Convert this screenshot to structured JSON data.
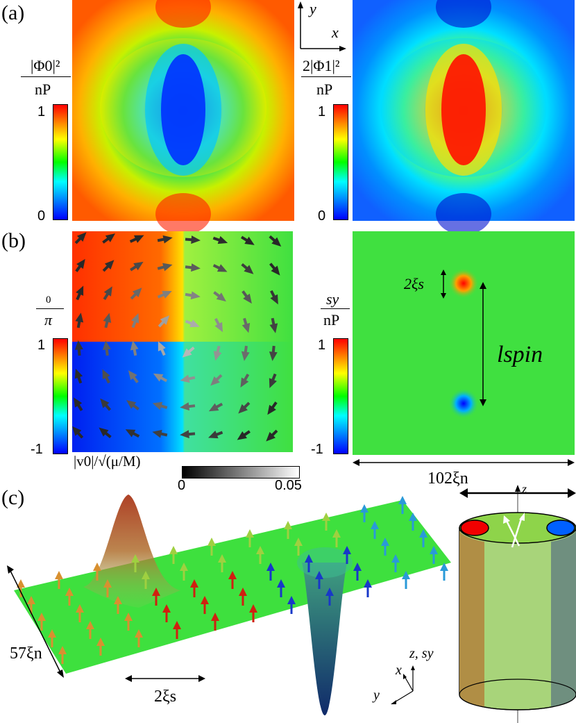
{
  "panel_labels": {
    "a": "(a)",
    "b": "(b)",
    "c": "(c)"
  },
  "panel_a": {
    "left_numerator": "|Φ0|²",
    "left_denominator": "nP",
    "right_numerator": "2|Φ1|²",
    "right_denominator": "nP",
    "colorbar_max": "1",
    "colorbar_min": "0",
    "axis_x": "x",
    "axis_y": "y",
    "colormap": [
      "#0000ff",
      "#00ffff",
      "#00ff00",
      "#ffff00",
      "#ff0000"
    ]
  },
  "panel_b": {
    "left_numerator": "0",
    "left_denominator": "π",
    "right_numerator": "sy",
    "right_denominator": "nP",
    "colorbar_max": "1",
    "colorbar_min": "-1",
    "velocity_label": "|v0|/√(μ/M)",
    "velocity_bar_min": "0",
    "velocity_bar_max": "0.05",
    "core_size_label": "2ξs",
    "spin_length_label": "lspin",
    "width_label": "102ξn"
  },
  "panel_c": {
    "depth_label": "57ξn",
    "core_size_label": "2ξs",
    "axes_label_z": "z, sy",
    "axes_label_x": "x",
    "axes_label_y": "y",
    "cylinder_axis_label": "z",
    "colors": {
      "arrow_red": "#d02010",
      "arrow_blue": "#1838c8",
      "plane": "#3ee03e",
      "cyl_left": "#b08e45",
      "cyl_right": "#6f8f7f"
    }
  }
}
